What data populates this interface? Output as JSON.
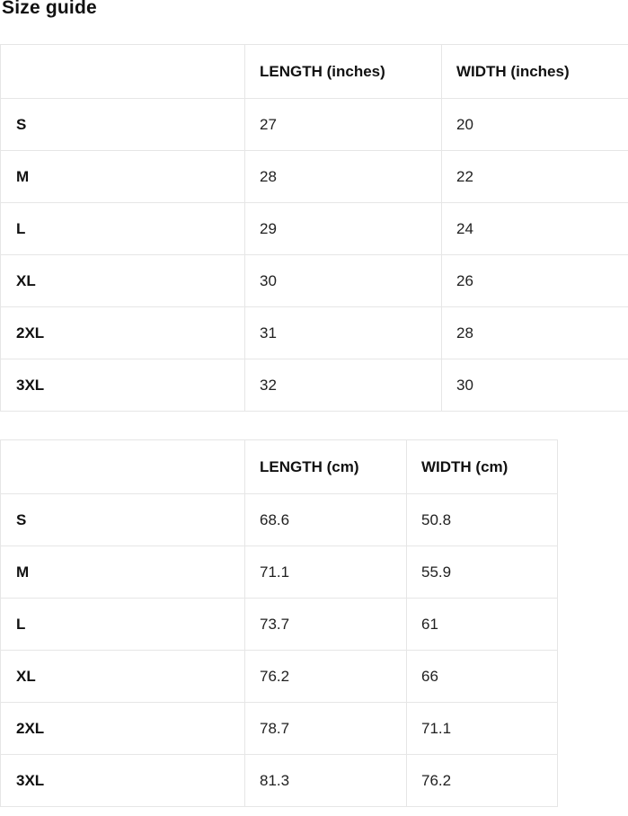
{
  "page": {
    "title": "Size guide"
  },
  "size_guide": {
    "inches_table": {
      "headers": {
        "size": "",
        "length": "LENGTH (inches)",
        "width": "WIDTH (inches)"
      },
      "rows": [
        {
          "size": "S",
          "length": "27",
          "width": "20"
        },
        {
          "size": "M",
          "length": "28",
          "width": "22"
        },
        {
          "size": "L",
          "length": "29",
          "width": "24"
        },
        {
          "size": "XL",
          "length": "30",
          "width": "26"
        },
        {
          "size": "2XL",
          "length": "31",
          "width": "28"
        },
        {
          "size": "3XL",
          "length": "32",
          "width": "30"
        }
      ]
    },
    "cm_table": {
      "headers": {
        "size": "",
        "length": "LENGTH (cm)",
        "width": "WIDTH (cm)"
      },
      "rows": [
        {
          "size": "S",
          "length": "68.6",
          "width": "50.8"
        },
        {
          "size": "M",
          "length": "71.1",
          "width": "55.9"
        },
        {
          "size": "L",
          "length": "73.7",
          "width": "61"
        },
        {
          "size": "XL",
          "length": "76.2",
          "width": "66"
        },
        {
          "size": "2XL",
          "length": "78.7",
          "width": "71.1"
        },
        {
          "size": "3XL",
          "length": "81.3",
          "width": "76.2"
        }
      ]
    }
  },
  "colors": {
    "table_border": "#e6e6e6",
    "heading_text": "#111111",
    "value_text": "#212121",
    "background": "#ffffff"
  }
}
